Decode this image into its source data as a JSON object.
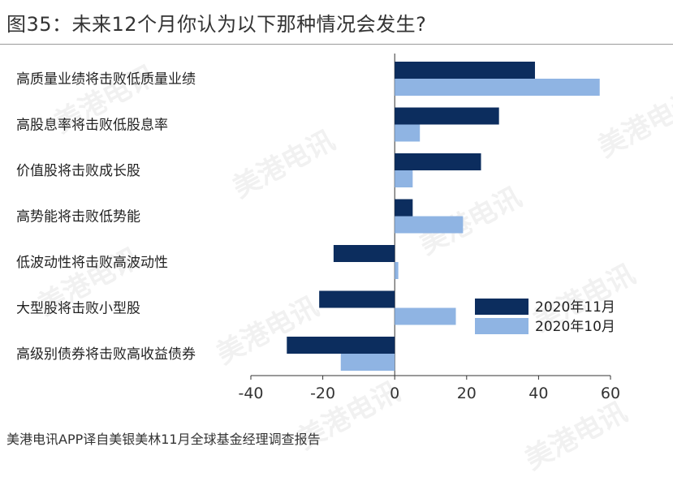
{
  "header": {
    "title": "图35：未来12个月你认为以下那种情况会发生?"
  },
  "footer": {
    "source": "美港电讯APP译自美银美林11月全球基金经理调查报告"
  },
  "watermark": {
    "text": "美港电讯"
  },
  "colors": {
    "series_nov": "#0c2d5e",
    "series_oct": "#8fb4e3"
  },
  "chart_data": {
    "type": "bar",
    "orientation": "horizontal",
    "categories": [
      "高质量业绩将击败低质量业绩",
      "高股息率将击败低股息率",
      "价值股将击败成长股",
      "高势能将击败低势能",
      "低波动性将击败高波动性",
      "大型股将击败小型股",
      "高级别债券将击败高收益债券"
    ],
    "series": [
      {
        "name": "2020年11月",
        "values": [
          39,
          29,
          24,
          5,
          -17,
          -21,
          -30
        ]
      },
      {
        "name": "2020年10月",
        "values": [
          57,
          7,
          5,
          19,
          1,
          17,
          -15
        ]
      }
    ],
    "xlim": [
      -40,
      60
    ],
    "xticks": [
      -40,
      -20,
      0,
      20,
      40,
      60
    ],
    "legend_position": "lower-right",
    "grid": false
  }
}
